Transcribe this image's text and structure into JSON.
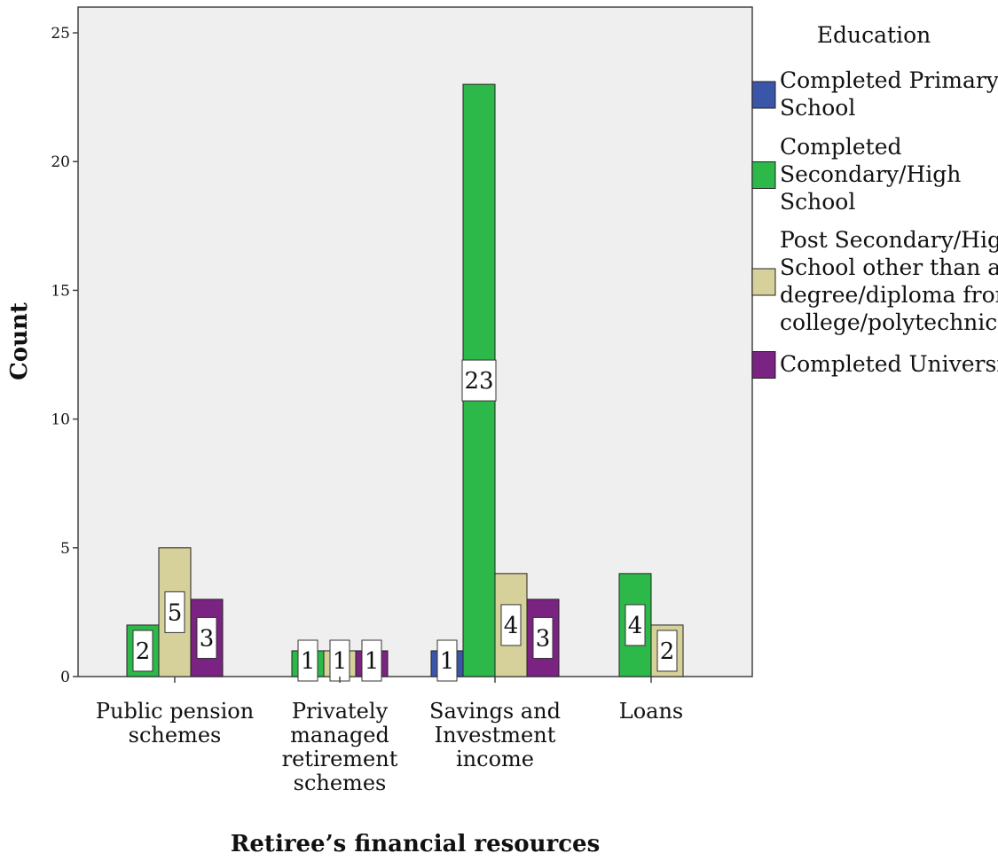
{
  "chart_data": {
    "type": "bar",
    "xlabel": "Retiree’s financial resources",
    "ylabel": "Count",
    "ylim": [
      0,
      26
    ],
    "yticks": [
      0,
      5,
      10,
      15,
      20,
      25
    ],
    "grid": false,
    "legend_position": "right",
    "legend_title": "Education",
    "categories": [
      "Public pension schemes",
      "Privately managed retirement schemes",
      "Savings and Investment income",
      "Loans"
    ],
    "category_label_lines": [
      [
        "Public pension",
        "schemes"
      ],
      [
        "Privately",
        "managed",
        "retirement",
        "schemes"
      ],
      [
        "Savings and",
        "Investment",
        "income"
      ],
      [
        "Loans"
      ]
    ],
    "series": [
      {
        "name": "Completed Primary School",
        "name_lines": [
          "Completed Primary",
          "School"
        ],
        "color": "#3a56a8",
        "values": [
          0,
          0,
          1,
          0
        ]
      },
      {
        "name": "Completed Secondary/High School",
        "name_lines": [
          "Completed",
          "Secondary/High",
          "School"
        ],
        "color": "#2db84a",
        "values": [
          2,
          1,
          23,
          4
        ]
      },
      {
        "name": "Post Secondary/High School other than a degree/diploma from college/polytechnic",
        "name_lines": [
          "Post Secondary/High",
          "School other than a",
          "degree/diploma from",
          "college/polytechnic"
        ],
        "color": "#d6d09b",
        "values": [
          5,
          1,
          4,
          2
        ]
      },
      {
        "name": "Completed University",
        "name_lines": [
          "Completed University"
        ],
        "color": "#7a2382",
        "values": [
          3,
          1,
          3,
          0
        ]
      }
    ]
  }
}
